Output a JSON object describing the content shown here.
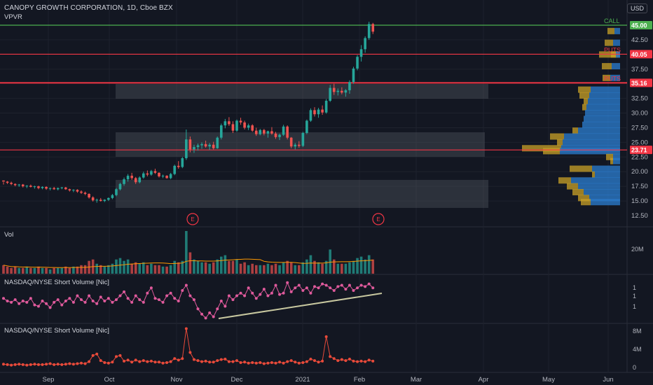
{
  "header": {
    "title": "CANOPY GROWTH CORPORATION, 1D, Cboe BZX",
    "indicator": "VPVR",
    "currency_button": "USD"
  },
  "colors": {
    "background": "#131722",
    "up": "#26a69a",
    "down": "#ef5350",
    "red_level": "#f23645",
    "green_level": "#4caf50",
    "box": "#2a2e39",
    "vpvr_blue": "#2a78c7",
    "vpvr_gold": "#c9a227",
    "short_vol_line": "#e05a9c",
    "short_vol2_line": "#e84a3a",
    "trendline": "#c8c8a0"
  },
  "levels": [
    {
      "label": "CALL",
      "value": 45.0,
      "tag": "45.00",
      "color": "#4caf50"
    },
    {
      "label": "PUTS",
      "value": 40.05,
      "tag": "40.05",
      "color": "#f23645"
    },
    {
      "label": "PUTS",
      "value": 35.16,
      "tag": "35.16",
      "color": "#f23645"
    },
    {
      "label": "",
      "value": 23.71,
      "tag": "23.71",
      "color": "#f23645"
    }
  ],
  "price_axis_ticks": [
    "42.50",
    "37.50",
    "32.50",
    "30.00",
    "27.50",
    "25.00",
    "22.50",
    "20.00",
    "17.50",
    "15.00",
    "12.50"
  ],
  "earnings_markers": [
    {
      "label": "E"
    },
    {
      "label": "E"
    }
  ],
  "time_axis": [
    "Sep",
    "Oct",
    "Nov",
    "Dec",
    "2021",
    "Feb",
    "Mar",
    "Apr",
    "May",
    "Jun"
  ],
  "panes": {
    "volume": {
      "label": "Vol",
      "axis": [
        "20M"
      ]
    },
    "short1": {
      "label": "NASDAQ/NYSE Short Volume [Nic]",
      "axis": [
        "1",
        "1",
        "1"
      ]
    },
    "short2": {
      "label": "NASDAQ/NYSE Short Volume [Nic]",
      "axis": [
        "8M",
        "4M",
        "0"
      ]
    }
  },
  "chart_data": {
    "type": "candlestick",
    "title": "CANOPY GROWTH CORPORATION, 1D, Cboe BZX",
    "ylim": [
      11.5,
      47
    ],
    "candles": [
      [
        18.5,
        18.2,
        17.8,
        18.3
      ],
      [
        18.3,
        18.4,
        17.9,
        18.1
      ],
      [
        18.1,
        18.3,
        17.7,
        17.9
      ],
      [
        17.9,
        18.0,
        17.5,
        17.7
      ],
      [
        17.7,
        17.9,
        17.4,
        17.8
      ],
      [
        17.8,
        17.9,
        17.3,
        17.5
      ],
      [
        17.5,
        17.7,
        17.2,
        17.6
      ],
      [
        17.6,
        17.8,
        17.3,
        17.4
      ],
      [
        17.4,
        17.6,
        17.1,
        17.5
      ],
      [
        17.5,
        17.6,
        17.0,
        17.2
      ],
      [
        17.2,
        17.5,
        17.0,
        17.4
      ],
      [
        17.4,
        17.5,
        16.9,
        17.1
      ],
      [
        17.1,
        17.3,
        16.8,
        17.2
      ],
      [
        17.2,
        17.4,
        16.9,
        17.0
      ],
      [
        17.0,
        17.3,
        16.8,
        17.2
      ],
      [
        17.2,
        17.4,
        17.0,
        17.3
      ],
      [
        17.3,
        17.4,
        16.9,
        17.0
      ],
      [
        17.0,
        17.1,
        16.6,
        16.8
      ],
      [
        16.8,
        17.0,
        16.5,
        16.9
      ],
      [
        16.9,
        17.0,
        16.4,
        16.6
      ],
      [
        16.6,
        16.8,
        16.2,
        16.4
      ],
      [
        16.4,
        16.6,
        16.0,
        16.2
      ],
      [
        16.2,
        16.3,
        15.4,
        15.6
      ],
      [
        15.6,
        15.8,
        14.9,
        15.1
      ],
      [
        15.1,
        15.4,
        14.7,
        15.2
      ],
      [
        15.2,
        15.5,
        14.9,
        15.0
      ],
      [
        15.0,
        15.3,
        14.8,
        15.2
      ],
      [
        15.2,
        15.6,
        15.0,
        15.5
      ],
      [
        15.5,
        16.2,
        15.3,
        16.0
      ],
      [
        16.0,
        17.2,
        15.8,
        17.0
      ],
      [
        17.0,
        18.1,
        16.8,
        17.9
      ],
      [
        17.9,
        19.0,
        17.6,
        18.7
      ],
      [
        18.7,
        19.6,
        18.3,
        19.3
      ],
      [
        19.3,
        19.8,
        18.6,
        18.9
      ],
      [
        18.9,
        19.1,
        17.9,
        18.2
      ],
      [
        18.2,
        19.2,
        18.0,
        19.0
      ],
      [
        19.0,
        20.0,
        18.8,
        19.7
      ],
      [
        19.7,
        20.2,
        19.2,
        19.5
      ],
      [
        19.5,
        20.3,
        19.3,
        20.1
      ],
      [
        20.1,
        20.5,
        19.6,
        19.8
      ],
      [
        19.8,
        19.9,
        19.0,
        19.2
      ],
      [
        19.2,
        19.5,
        18.9,
        19.3
      ],
      [
        19.3,
        19.4,
        18.8,
        18.9
      ],
      [
        18.9,
        19.8,
        18.7,
        19.6
      ],
      [
        19.6,
        21.2,
        19.4,
        21.0
      ],
      [
        21.0,
        21.8,
        20.5,
        20.8
      ],
      [
        20.8,
        22.5,
        20.6,
        22.3
      ],
      [
        22.3,
        27.2,
        22.0,
        25.5
      ],
      [
        25.5,
        26.0,
        23.3,
        23.8
      ],
      [
        23.8,
        24.6,
        23.2,
        24.2
      ],
      [
        24.2,
        24.8,
        23.6,
        24.5
      ],
      [
        24.5,
        25.0,
        23.9,
        24.7
      ],
      [
        24.7,
        25.3,
        24.1,
        24.3
      ],
      [
        24.3,
        24.9,
        23.7,
        24.6
      ],
      [
        24.6,
        25.1,
        23.8,
        24.0
      ],
      [
        24.0,
        26.0,
        23.9,
        25.8
      ],
      [
        25.8,
        28.2,
        25.5,
        27.9
      ],
      [
        27.9,
        29.0,
        27.4,
        28.6
      ],
      [
        28.6,
        29.3,
        27.8,
        28.1
      ],
      [
        28.1,
        28.6,
        26.6,
        27.0
      ],
      [
        27.0,
        28.9,
        26.8,
        28.7
      ],
      [
        28.7,
        29.2,
        28.0,
        28.4
      ],
      [
        28.4,
        28.7,
        27.2,
        27.5
      ],
      [
        27.5,
        28.2,
        27.1,
        27.9
      ],
      [
        27.9,
        28.1,
        26.8,
        27.0
      ],
      [
        27.0,
        27.5,
        26.1,
        26.4
      ],
      [
        26.4,
        27.3,
        26.2,
        27.1
      ],
      [
        27.1,
        27.3,
        26.2,
        26.5
      ],
      [
        26.5,
        27.0,
        25.8,
        26.9
      ],
      [
        26.9,
        27.6,
        26.3,
        26.5
      ],
      [
        26.5,
        26.8,
        25.6,
        25.9
      ],
      [
        25.9,
        26.5,
        25.4,
        26.3
      ],
      [
        26.3,
        28.0,
        26.1,
        27.7
      ],
      [
        27.7,
        27.9,
        25.5,
        25.8
      ],
      [
        25.8,
        25.9,
        24.0,
        24.3
      ],
      [
        24.3,
        24.9,
        23.8,
        24.6
      ],
      [
        24.6,
        25.2,
        24.1,
        24.4
      ],
      [
        24.4,
        26.8,
        24.2,
        26.6
      ],
      [
        26.6,
        28.9,
        26.4,
        28.7
      ],
      [
        28.7,
        30.8,
        28.5,
        30.5
      ],
      [
        30.5,
        31.0,
        29.4,
        29.8
      ],
      [
        29.8,
        30.9,
        29.2,
        30.6
      ],
      [
        30.6,
        31.3,
        29.7,
        30.1
      ],
      [
        30.1,
        32.4,
        29.9,
        32.1
      ],
      [
        32.1,
        34.8,
        31.9,
        34.3
      ],
      [
        34.3,
        35.0,
        33.1,
        33.6
      ],
      [
        33.6,
        34.2,
        33.0,
        33.8
      ],
      [
        33.8,
        34.4,
        33.2,
        33.5
      ],
      [
        33.5,
        34.1,
        32.8,
        33.9
      ],
      [
        33.9,
        35.6,
        33.3,
        35.3
      ],
      [
        35.3,
        37.9,
        35.0,
        37.6
      ],
      [
        37.6,
        39.9,
        37.3,
        39.6
      ],
      [
        39.6,
        41.6,
        38.8,
        40.9
      ],
      [
        40.9,
        43.1,
        40.3,
        42.8
      ],
      [
        42.8,
        45.6,
        42.5,
        45.2
      ],
      [
        45.2,
        45.4,
        43.5,
        43.9
      ]
    ],
    "volume_m": [
      6,
      5,
      4,
      5,
      4,
      4,
      5,
      4,
      4,
      5,
      4,
      4,
      3,
      4,
      4,
      4,
      5,
      4,
      5,
      5,
      6,
      6,
      9,
      10,
      7,
      6,
      5,
      6,
      7,
      10,
      11,
      9,
      10,
      7,
      8,
      7,
      8,
      6,
      7,
      6,
      6,
      5,
      5,
      6,
      9,
      8,
      9,
      30,
      15,
      10,
      9,
      8,
      8,
      7,
      8,
      10,
      12,
      13,
      9,
      9,
      10,
      7,
      8,
      6,
      7,
      6,
      6,
      6,
      7,
      6,
      7,
      6,
      8,
      9,
      8,
      6,
      6,
      8,
      10,
      13,
      9,
      8,
      7,
      9,
      17,
      10,
      7,
      7,
      7,
      8,
      9,
      11,
      12,
      10,
      13,
      10
    ],
    "short_volume_ratio_series": [
      0.58,
      0.56,
      0.55,
      0.57,
      0.54,
      0.56,
      0.55,
      0.58,
      0.53,
      0.52,
      0.56,
      0.54,
      0.51,
      0.55,
      0.57,
      0.53,
      0.56,
      0.58,
      0.55,
      0.6,
      0.57,
      0.55,
      0.6,
      0.56,
      0.54,
      0.59,
      0.56,
      0.58,
      0.55,
      0.57,
      0.6,
      0.63,
      0.58,
      0.55,
      0.6,
      0.57,
      0.55,
      0.62,
      0.66,
      0.58,
      0.57,
      0.55,
      0.6,
      0.62,
      0.58,
      0.56,
      0.64,
      0.68,
      0.6,
      0.57,
      0.5,
      0.46,
      0.43,
      0.47,
      0.44,
      0.5,
      0.56,
      0.52,
      0.6,
      0.57,
      0.6,
      0.62,
      0.6,
      0.66,
      0.62,
      0.58,
      0.61,
      0.65,
      0.6,
      0.62,
      0.68,
      0.61,
      0.62,
      0.7,
      0.63,
      0.66,
      0.68,
      0.64,
      0.66,
      0.62,
      0.67,
      0.66,
      0.69,
      0.68,
      0.66,
      0.64,
      0.67,
      0.68,
      0.65,
      0.68,
      0.64,
      0.66,
      0.68,
      0.67,
      0.69,
      0.66
    ],
    "short_volume_m": [
      0.8,
      0.7,
      0.6,
      0.7,
      0.8,
      0.7,
      0.6,
      0.7,
      0.8,
      0.7,
      0.7,
      0.8,
      0.9,
      0.7,
      0.8,
      0.7,
      0.8,
      0.9,
      0.8,
      0.9,
      1.0,
      0.9,
      1.3,
      2.5,
      2.8,
      1.5,
      1.1,
      1.0,
      1.2,
      2.3,
      2.5,
      1.4,
      1.6,
      1.2,
      1.6,
      1.3,
      1.5,
      1.3,
      1.4,
      1.2,
      1.2,
      1.0,
      1.1,
      1.3,
      1.9,
      1.6,
      1.9,
      7.8,
      3.1,
      1.7,
      1.5,
      1.3,
      1.4,
      1.2,
      1.2,
      1.5,
      1.7,
      1.8,
      1.3,
      1.3,
      1.5,
      1.1,
      1.2,
      1.0,
      1.1,
      1.0,
      1.1,
      0.9,
      1.0,
      1.1,
      1.0,
      1.2,
      1.0,
      1.3,
      1.5,
      1.2,
      1.0,
      1.1,
      1.3,
      1.8,
      1.5,
      1.2,
      1.4,
      6.2,
      2.3,
      1.9,
      1.5,
      1.7,
      1.5,
      1.8,
      1.4,
      1.3,
      1.4,
      1.3,
      1.6,
      1.4
    ]
  }
}
